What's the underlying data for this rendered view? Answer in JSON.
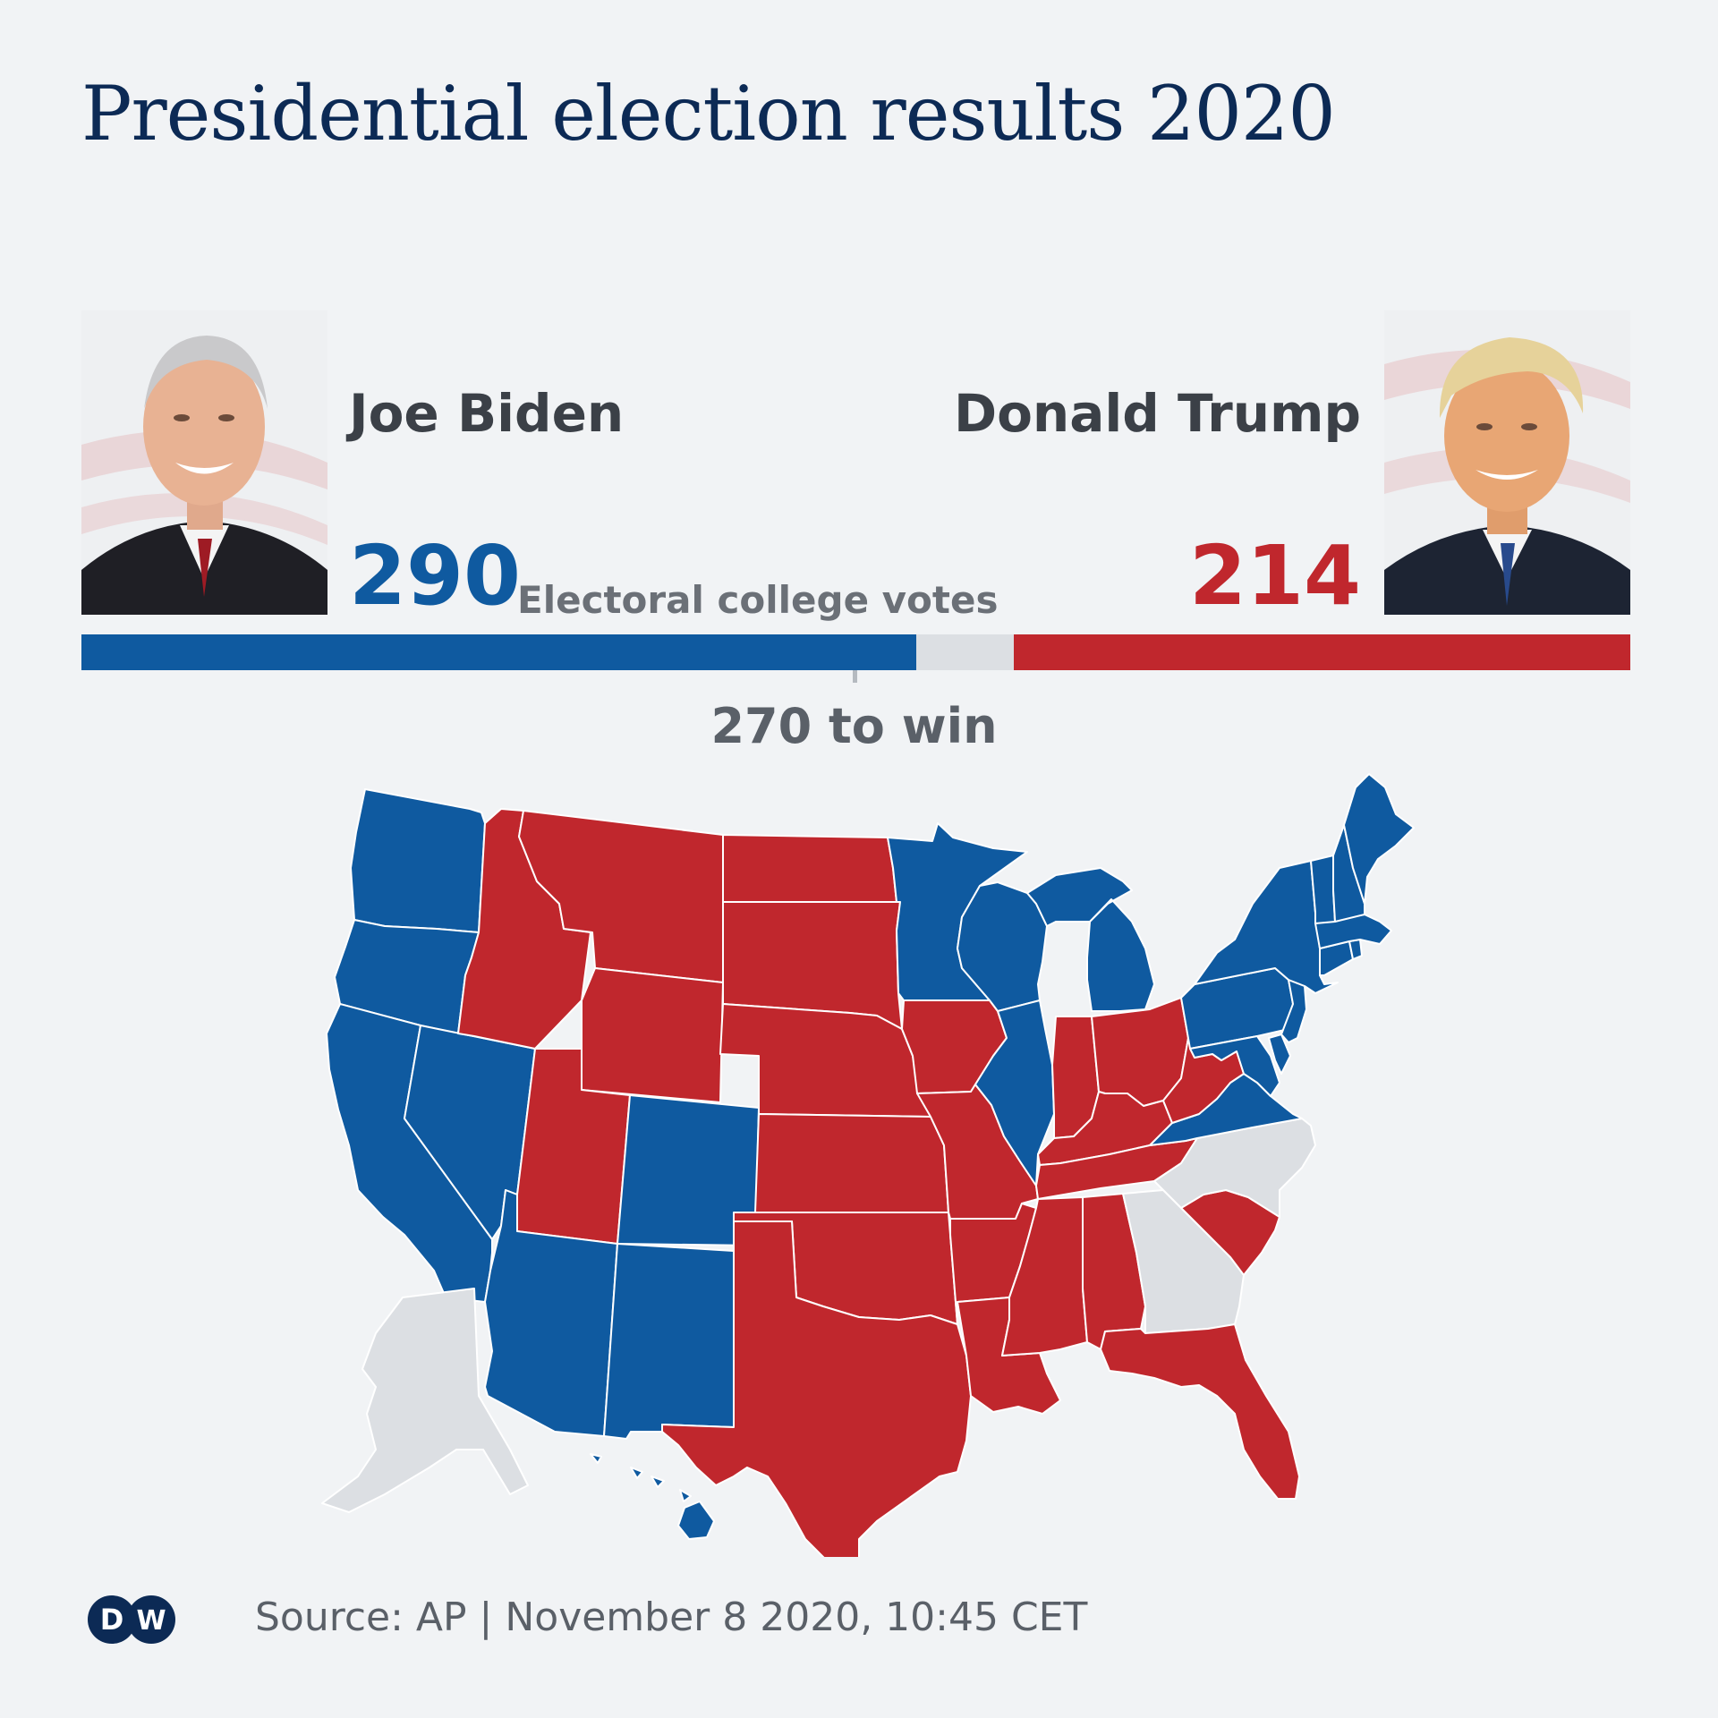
{
  "title": "Presidential election results 2020",
  "candidates": {
    "biden": {
      "name": "Joe Biden",
      "votes": "290",
      "color": "#0f5aa0"
    },
    "trump": {
      "name": "Donald Trump",
      "votes": "214",
      "color": "#c0272d"
    }
  },
  "votes_label": "Electoral college votes",
  "bar": {
    "total": 538,
    "dem": 290,
    "rep": 214,
    "threshold": 270
  },
  "win_label": "270 to win",
  "map": {
    "colors": {
      "dem": "#0f5aa0",
      "rep": "#c0272d",
      "undecided": "#dcdfe3"
    },
    "dem_states": [
      "WA",
      "OR",
      "CA",
      "NV",
      "AZ",
      "CO",
      "NM",
      "MN",
      "WI",
      "MI",
      "IL",
      "PA",
      "NY",
      "VA",
      "MD",
      "DE",
      "NJ",
      "CT",
      "RI",
      "MA",
      "VT",
      "NH",
      "ME",
      "HI"
    ],
    "rep_states": [
      "ID",
      "MT",
      "WY",
      "UT",
      "ND",
      "SD",
      "NE",
      "KS",
      "OK",
      "TX",
      "IA",
      "MO",
      "AR",
      "LA",
      "MS",
      "AL",
      "TN",
      "KY",
      "IN",
      "OH",
      "WV",
      "SC",
      "FL"
    ],
    "undecided_states": [
      "AK",
      "NC",
      "GA"
    ]
  },
  "logo": "DW",
  "source": "Source: AP | November 8 2020, 10:45 CET"
}
